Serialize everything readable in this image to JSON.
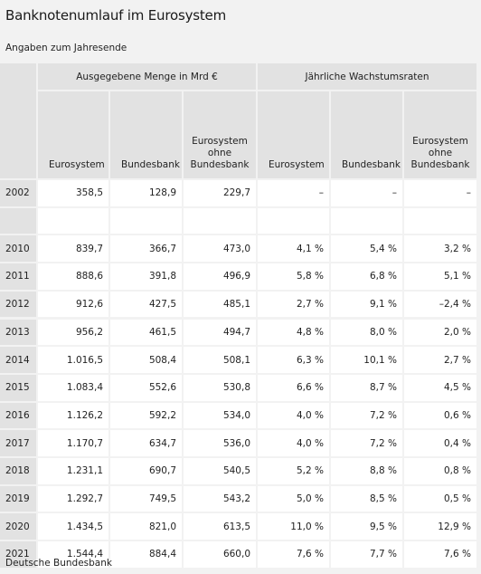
{
  "title": "Banknotenumlauf im Eurosystem",
  "subtitle": "Angaben zum Jahresende",
  "footer": "Deutsche Bundesbank",
  "groups": {
    "menge": "Ausgegebene Menge in Mrd €",
    "wachstum": "Jährliche Wachstumsraten"
  },
  "columns": [
    [
      "Eurosystem"
    ],
    [
      "Bundesbank"
    ],
    [
      "Eurosystem",
      "ohne",
      "Bundesbank"
    ],
    [
      "Eurosystem"
    ],
    [
      "Bundesbank"
    ],
    [
      "Eurosystem",
      "ohne",
      "Bundesbank"
    ]
  ],
  "rows": [
    {
      "year": "2002",
      "values": [
        "358,5",
        "128,9",
        "229,7",
        "–",
        "–",
        "–"
      ]
    },
    {
      "year": "",
      "values": [
        "",
        "",
        "",
        "",
        "",
        ""
      ]
    },
    {
      "year": "2010",
      "values": [
        "839,7",
        "366,7",
        "473,0",
        "4,1 %",
        "5,4 %",
        "3,2 %"
      ]
    },
    {
      "year": "2011",
      "values": [
        "888,6",
        "391,8",
        "496,9",
        "5,8 %",
        "6,8 %",
        "5,1 %"
      ]
    },
    {
      "year": "2012",
      "values": [
        "912,6",
        "427,5",
        "485,1",
        "2,7 %",
        "9,1 %",
        "–2,4 %"
      ]
    },
    {
      "year": "2013",
      "values": [
        "956,2",
        "461,5",
        "494,7",
        "4,8 %",
        "8,0 %",
        "2,0 %"
      ]
    },
    {
      "year": "2014",
      "values": [
        "1.016,5",
        "508,4",
        "508,1",
        "6,3 %",
        "10,1 %",
        "2,7 %"
      ]
    },
    {
      "year": "2015",
      "values": [
        "1.083,4",
        "552,6",
        "530,8",
        "6,6 %",
        "8,7 %",
        "4,5 %"
      ]
    },
    {
      "year": "2016",
      "values": [
        "1.126,2",
        "592,2",
        "534,0",
        "4,0 %",
        "7,2 %",
        "0,6 %"
      ]
    },
    {
      "year": "2017",
      "values": [
        "1.170,7",
        "634,7",
        "536,0",
        "4,0 %",
        "7,2 %",
        "0,4 %"
      ]
    },
    {
      "year": "2018",
      "values": [
        "1.231,1",
        "690,7",
        "540,5",
        "5,2 %",
        "8,8 %",
        "0,8 %"
      ]
    },
    {
      "year": "2019",
      "values": [
        "1.292,7",
        "749,5",
        "543,2",
        "5,0 %",
        "8,5 %",
        "0,5 %"
      ]
    },
    {
      "year": "2020",
      "values": [
        "1.434,5",
        "821,0",
        "613,5",
        "11,0 %",
        "9,5 %",
        "12,9 %"
      ]
    },
    {
      "year": "2021",
      "values": [
        "1.544,4",
        "884,4",
        "660,0",
        "7,6 %",
        "7,7 %",
        "7,6 %"
      ]
    }
  ]
}
